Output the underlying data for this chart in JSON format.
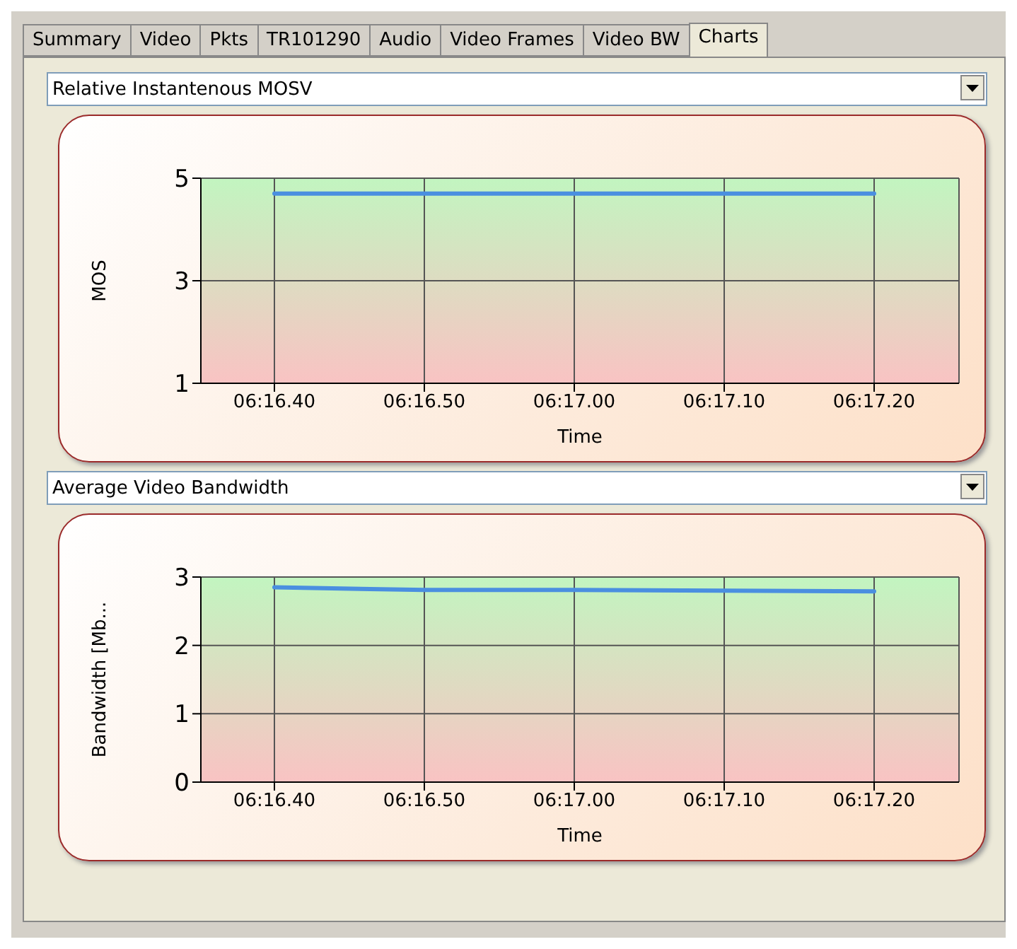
{
  "chart_data": [
    {
      "type": "line",
      "title": "Relative Instantenous MOSV",
      "xlabel": "Time",
      "ylabel": "MOS",
      "annotations": [
        "Summary",
        "Video",
        "Pkts",
        "TR101290",
        "Audio",
        "Video Frames",
        "Video BW",
        "Charts"
      ],
      "categories": [
        "06:16.40",
        "06:16.50",
        "06:17.00",
        "06:17.10",
        "06:17.20"
      ],
      "series": [
        {
          "color": "#4a8fe0",
          "values": [
            4.7,
            4.7,
            4.7,
            4.7,
            4.7
          ]
        }
      ],
      "ylim": [
        1,
        5
      ],
      "yticks": [
        1,
        3,
        5
      ],
      "grid": true,
      "marker": "none",
      "line_style": "solid"
    },
    {
      "type": "line",
      "title": "Average Video Bandwidth",
      "xlabel": "Time",
      "ylabel": "Bandwidth  [Mb...",
      "categories": [
        "06:16.40",
        "06:16.50",
        "06:17.00",
        "06:17.10",
        "06:17.20"
      ],
      "series": [
        {
          "color": "#4a8fe0",
          "values": [
            2.85,
            2.81,
            2.81,
            2.8,
            2.79
          ]
        }
      ],
      "ylim": [
        0,
        3
      ],
      "yticks": [
        0,
        1,
        2,
        3
      ],
      "grid": true,
      "marker": "none",
      "line_style": "solid"
    }
  ]
}
